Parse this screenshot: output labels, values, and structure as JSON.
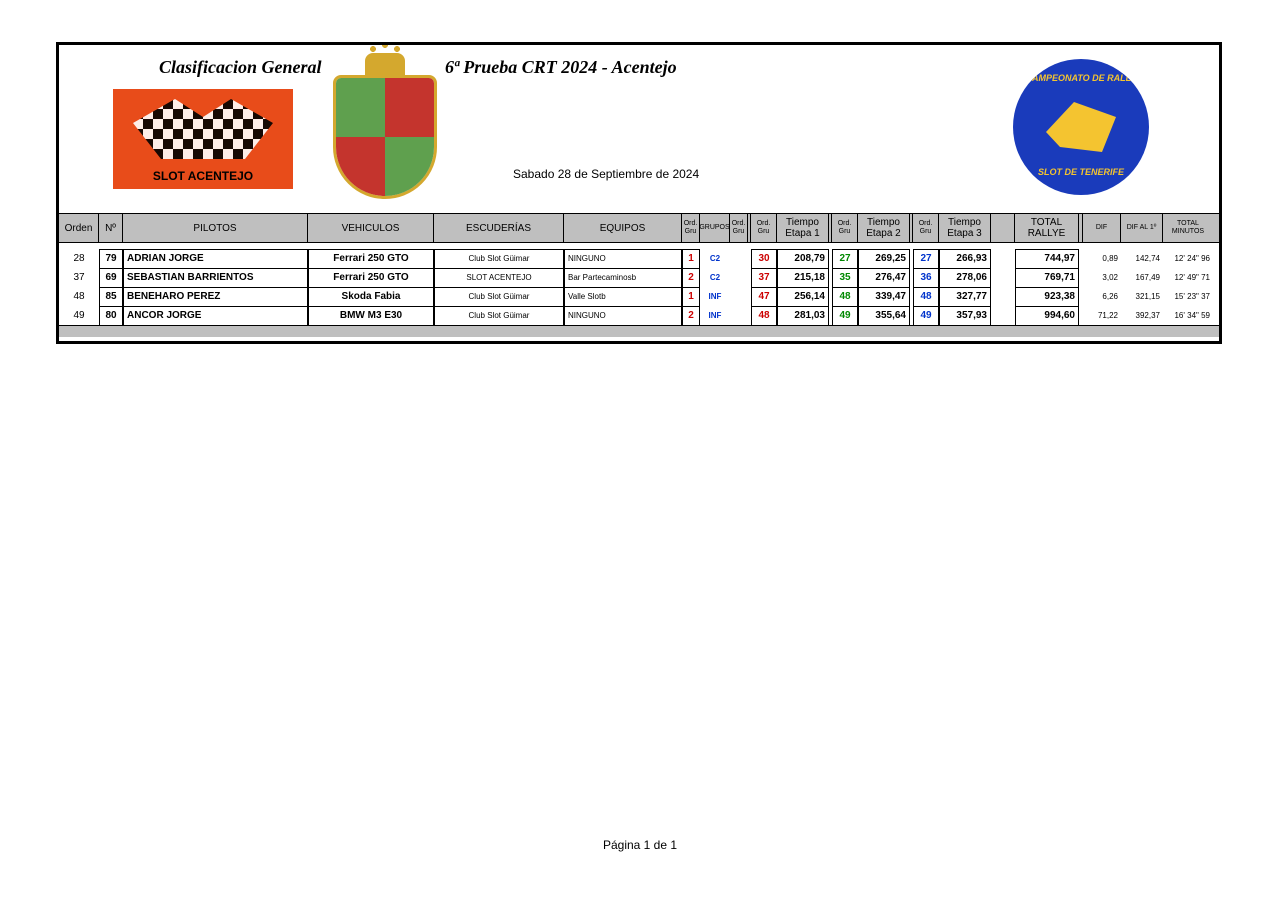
{
  "titles": {
    "left": "Clasificacion  General",
    "right": "6ª Prueba CRT 2024 - Acentejo",
    "date": "Sabado 28 de Septiembre  de 2024",
    "slot_logo": "SLOT ACENTEJO",
    "crt_top": "CAMPEONATO DE RALLY",
    "crt_bottom": "SLOT DE TENERIFE"
  },
  "columns": {
    "orden": "Orden",
    "num": "Nº",
    "pilotos": "PILOTOS",
    "vehiculos": "VEHICULOS",
    "escuderias": "ESCUDERÍAS",
    "equipos": "EQUIPOS",
    "ordgru": "Ord. Gru",
    "grupos": "GRUPOS",
    "ordgru2": "Ord. Gru",
    "og1": "Ord. Gru",
    "te1": "Tiempo Etapa 1",
    "og2": "Ord. Gru",
    "te2": "Tiempo Etapa 2",
    "og3": "Ord. Gru",
    "te3": "Tiempo Etapa 3",
    "total": "TOTAL RALLYE",
    "dif": "DIF",
    "difal": "DIF AL  1º",
    "min": "TOTAL MINUTOS"
  },
  "rows": [
    {
      "orden": "28",
      "num": "79",
      "piloto": "ADRIAN JORGE",
      "veh": "Ferrari 250 GTO",
      "esc": "Club Slot Güimar",
      "equ": "NINGUNO",
      "ordgru": "1",
      "grup": "C2",
      "ordgru2": "",
      "og1": "30",
      "te1": "208,79",
      "og2": "27",
      "te2": "269,25",
      "og3": "27",
      "te3": "266,93",
      "total": "744,97",
      "dif": "0,89",
      "difal": "142,74",
      "min": "12' 24\" 96"
    },
    {
      "orden": "37",
      "num": "69",
      "piloto": "SEBASTIAN BARRIENTOS",
      "veh": "Ferrari 250 GTO",
      "esc": "SLOT ACENTEJO",
      "equ": "Bar Partecaminosb",
      "ordgru": "2",
      "grup": "C2",
      "ordgru2": "",
      "og1": "37",
      "te1": "215,18",
      "og2": "35",
      "te2": "276,47",
      "og3": "36",
      "te3": "278,06",
      "total": "769,71",
      "dif": "3,02",
      "difal": "167,49",
      "min": "12' 49\" 71"
    },
    {
      "orden": "48",
      "num": "85",
      "piloto": "BENEHARO PEREZ",
      "veh": "Skoda Fabia",
      "esc": "Club Slot Güimar",
      "equ": "Valle Slotb",
      "ordgru": "1",
      "grup": "INF",
      "ordgru2": "",
      "og1": "47",
      "te1": "256,14",
      "og2": "48",
      "te2": "339,47",
      "og3": "48",
      "te3": "327,77",
      "total": "923,38",
      "dif": "6,26",
      "difal": "321,15",
      "min": "15' 23\" 37"
    },
    {
      "orden": "49",
      "num": "80",
      "piloto": "ANCOR JORGE",
      "veh": "BMW M3 E30",
      "esc": "Club Slot Güimar",
      "equ": "NINGUNO",
      "ordgru": "2",
      "grup": "INF",
      "ordgru2": "",
      "og1": "48",
      "te1": "281,03",
      "og2": "49",
      "te2": "355,64",
      "og3": "49",
      "te3": "357,93",
      "total": "994,60",
      "dif": "71,22",
      "difal": "392,37",
      "min": "16' 34\" 59"
    }
  ],
  "footer": {
    "page": "Página 1 de 1"
  },
  "colors": {
    "header_bg": "#bfbfbf",
    "red": "#cc0000",
    "blue": "#0033cc",
    "green": "#008800",
    "slot_bg": "#e84c1a",
    "crt_bg": "#1a3bbb",
    "crt_yellow": "#f4c430"
  }
}
